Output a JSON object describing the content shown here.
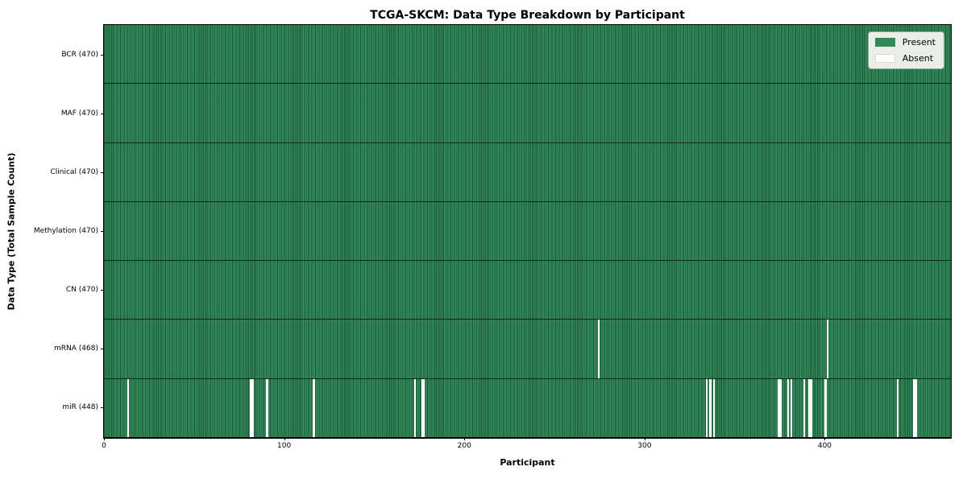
{
  "title": "TCGA-SKCM: Data Type Breakdown by Participant",
  "colors": {
    "present": "#2e8b57",
    "absent": "#ffffff",
    "cell_edge": "#1e4d33",
    "legend_background": "#e9eee7",
    "legend_border": "#9aa39b"
  },
  "legend": {
    "present": "Present",
    "absent": "Absent"
  },
  "chart_data": {
    "type": "heatmap",
    "title": "TCGA-SKCM: Data Type Breakdown by Participant",
    "xlabel": "Participant",
    "ylabel": "Data Type (Total Sample Count)",
    "legend_entries": [
      "Present",
      "Absent"
    ],
    "legend_position": "upper right",
    "grid": false,
    "n_participants": 470,
    "x_range": [
      0,
      470
    ],
    "x_ticks": [
      0,
      100,
      200,
      300,
      400
    ],
    "rows": [
      {
        "label": "BCR (470)",
        "data_type": "BCR",
        "present_count": 470,
        "absent_participants": []
      },
      {
        "label": "MAF (470)",
        "data_type": "MAF",
        "present_count": 470,
        "absent_participants": []
      },
      {
        "label": "Clinical (470)",
        "data_type": "Clinical",
        "present_count": 470,
        "absent_participants": []
      },
      {
        "label": "Methylation (470)",
        "data_type": "Methylation",
        "present_count": 470,
        "absent_participants": []
      },
      {
        "label": "CN (470)",
        "data_type": "CN",
        "present_count": 470,
        "absent_participants": []
      },
      {
        "label": "mRNA (468)",
        "data_type": "mRNA",
        "present_count": 468,
        "absent_participants": [
          274,
          401
        ]
      },
      {
        "label": "miR (448)",
        "data_type": "miR",
        "present_count": 448,
        "absent_participants": [
          13,
          81,
          82,
          90,
          116,
          172,
          176,
          177,
          334,
          336,
          338,
          374,
          375,
          379,
          381,
          388,
          391,
          392,
          400,
          440,
          449,
          450
        ]
      }
    ]
  }
}
